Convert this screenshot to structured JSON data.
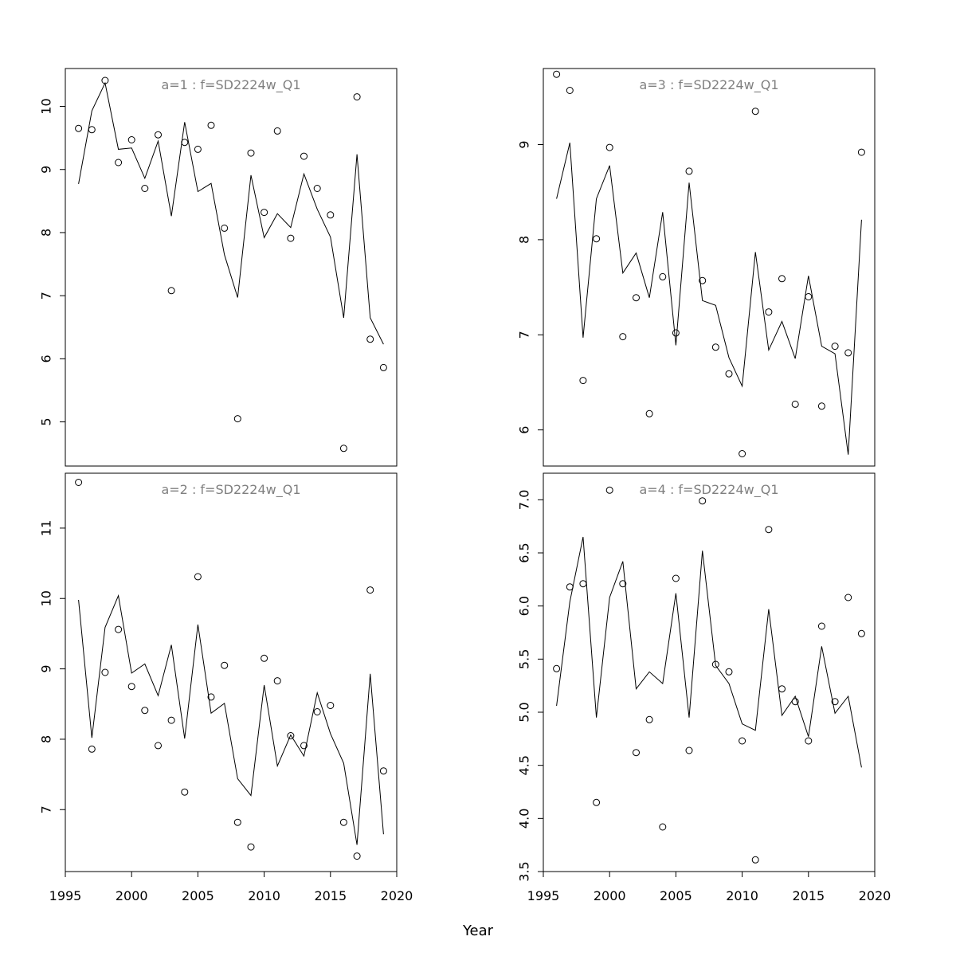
{
  "chart_data": {
    "type": "scatter",
    "layout": "2x2 panels with shared x axis",
    "xlabel": "Year",
    "x": [
      1996,
      1997,
      1998,
      1999,
      2000,
      2001,
      2002,
      2003,
      2004,
      2005,
      2006,
      2007,
      2008,
      2009,
      2010,
      2011,
      2012,
      2013,
      2014,
      2015,
      2016,
      2017,
      2018,
      2019
    ],
    "xlim": [
      1995,
      2020
    ],
    "xticks": [
      1995,
      2000,
      2005,
      2010,
      2015,
      2020
    ],
    "panels": [
      {
        "title": "a=1  :  f=SD2224w_Q1",
        "position": "top-left",
        "ylim": [
          4.3,
          10.6
        ],
        "yticks": [
          5,
          6,
          7,
          8,
          9,
          10
        ],
        "ytick_labels": [
          "5",
          "6",
          "7",
          "8",
          "9",
          "10"
        ],
        "series": [
          {
            "name": "observed",
            "style": "points",
            "values": [
              9.65,
              9.63,
              10.41,
              9.11,
              9.47,
              8.7,
              9.55,
              7.08,
              9.43,
              9.32,
              9.7,
              8.07,
              5.05,
              9.26,
              8.32,
              9.61,
              7.91,
              9.21,
              8.7,
              8.28,
              4.58,
              10.15,
              6.31,
              5.86
            ]
          },
          {
            "name": "fitted",
            "style": "line",
            "values": [
              8.77,
              9.93,
              10.37,
              9.32,
              9.34,
              8.86,
              9.45,
              8.26,
              9.75,
              8.65,
              8.78,
              7.65,
              6.97,
              8.91,
              7.92,
              8.3,
              8.08,
              8.93,
              8.37,
              7.93,
              6.65,
              9.24,
              6.65,
              6.23
            ]
          }
        ]
      },
      {
        "title": "a=3  :  f=SD2224w_Q1",
        "position": "top-right",
        "ylim": [
          5.62,
          9.8
        ],
        "yticks": [
          6,
          7,
          8,
          9
        ],
        "ytick_labels": [
          "6",
          "7",
          "8",
          "9"
        ],
        "series": [
          {
            "name": "observed",
            "style": "points",
            "values": [
              9.74,
              9.57,
              6.52,
              8.01,
              8.97,
              6.98,
              7.39,
              6.17,
              7.61,
              7.02,
              8.72,
              7.57,
              6.87,
              6.59,
              5.75,
              9.35,
              7.24,
              7.59,
              6.27,
              7.4,
              6.25,
              6.88,
              6.81,
              8.92
            ]
          },
          {
            "name": "fitted",
            "style": "line",
            "values": [
              8.43,
              9.02,
              6.97,
              8.43,
              8.78,
              7.65,
              7.86,
              7.39,
              8.29,
              6.89,
              8.6,
              7.36,
              7.31,
              6.76,
              6.46,
              7.87,
              6.84,
              7.14,
              6.75,
              7.62,
              6.88,
              6.8,
              5.74,
              8.21
            ]
          }
        ]
      },
      {
        "title": "a=2  :  f=SD2224w_Q1",
        "position": "bottom-left",
        "ylim": [
          6.12,
          11.78
        ],
        "yticks": [
          7,
          8,
          9,
          10,
          11
        ],
        "ytick_labels": [
          "7",
          "8",
          "9",
          "10",
          "11"
        ],
        "series": [
          {
            "name": "observed",
            "style": "points",
            "values": [
              11.65,
              7.86,
              8.95,
              9.56,
              8.75,
              8.41,
              7.91,
              8.27,
              7.25,
              10.31,
              8.6,
              9.05,
              6.82,
              6.47,
              9.15,
              8.83,
              8.05,
              7.91,
              8.39,
              8.48,
              6.82,
              6.34,
              10.12,
              7.55
            ]
          },
          {
            "name": "fitted",
            "style": "line",
            "values": [
              9.98,
              8.02,
              9.59,
              10.04,
              8.94,
              9.07,
              8.62,
              9.34,
              8.01,
              9.63,
              8.37,
              8.51,
              7.44,
              7.2,
              8.77,
              7.62,
              8.06,
              7.76,
              8.66,
              8.08,
              7.66,
              6.5,
              8.93,
              6.65
            ]
          }
        ]
      },
      {
        "title": "a=4  :  f=SD2224w_Q1",
        "position": "bottom-right",
        "ylim": [
          3.5,
          7.25
        ],
        "yticks": [
          3.5,
          4.0,
          4.5,
          5.0,
          5.5,
          6.0,
          6.5,
          7.0
        ],
        "ytick_labels": [
          "3.5",
          "4.0",
          "4.5",
          "5.0",
          "5.5",
          "6.0",
          "6.5",
          "7.0"
        ],
        "series": [
          {
            "name": "observed",
            "style": "points",
            "values": [
              5.41,
              6.18,
              6.21,
              4.15,
              7.09,
              6.21,
              4.62,
              4.93,
              3.92,
              6.26,
              4.64,
              6.99,
              5.45,
              5.38,
              4.73,
              3.61,
              6.72,
              5.22,
              5.1,
              4.73,
              5.81,
              5.1,
              6.08,
              5.74
            ]
          },
          {
            "name": "fitted",
            "style": "line",
            "values": [
              5.06,
              6.04,
              6.65,
              4.95,
              6.08,
              6.42,
              5.22,
              5.38,
              5.27,
              6.12,
              4.95,
              6.52,
              5.44,
              5.27,
              4.89,
              4.83,
              5.97,
              4.97,
              5.15,
              4.77,
              5.62,
              4.99,
              5.15,
              4.48
            ]
          }
        ]
      }
    ]
  }
}
